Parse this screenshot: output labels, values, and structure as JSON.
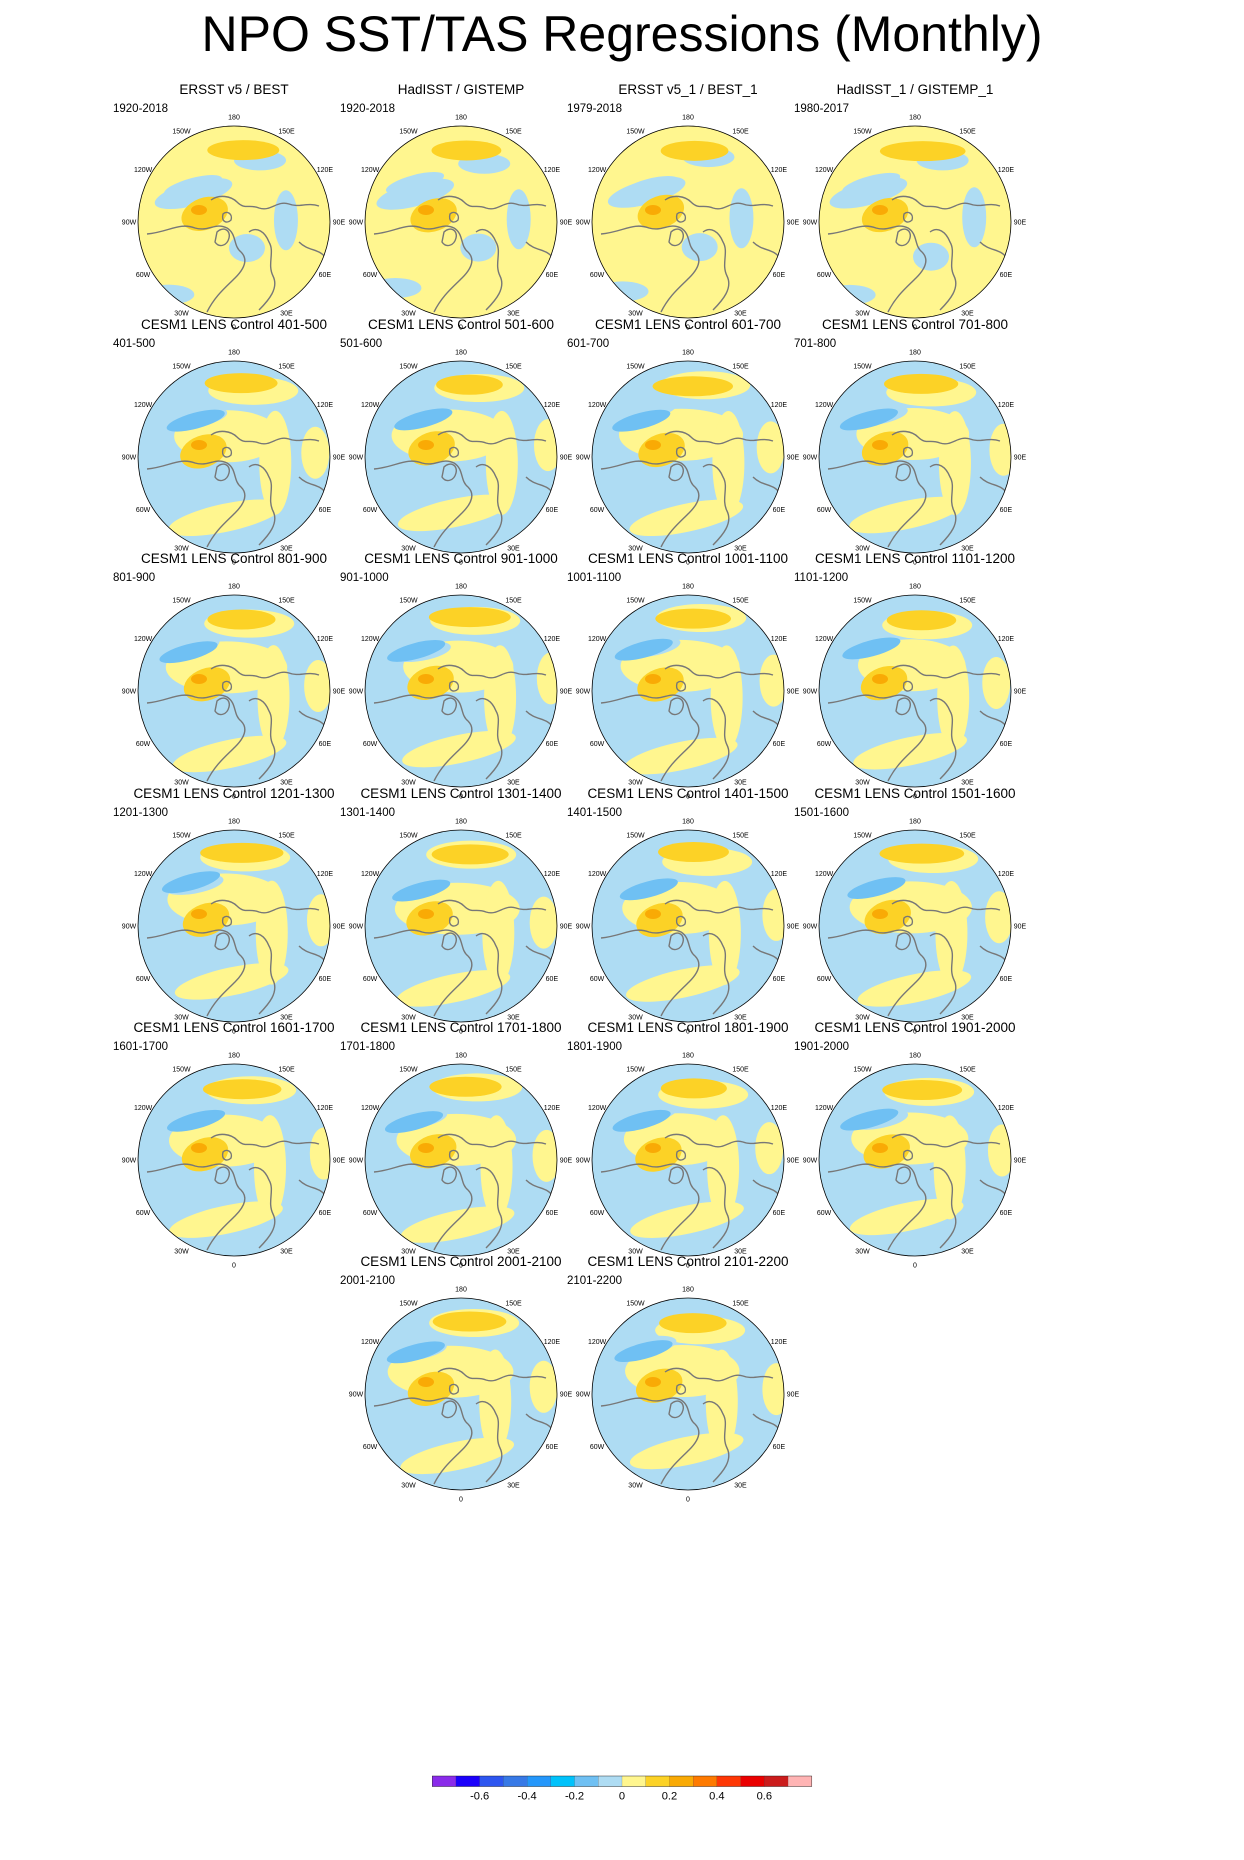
{
  "title": "NPO SST/TAS Regressions (Monthly)",
  "panels": [
    {
      "title": "ERSST v5 / BEST",
      "period": "1920-2018"
    },
    {
      "title": "HadISST / GISTEMP",
      "period": "1920-2018"
    },
    {
      "title": "ERSST v5_1 / BEST_1",
      "period": "1979-2018"
    },
    {
      "title": "HadISST_1 / GISTEMP_1",
      "period": "1980-2017"
    },
    {
      "title": "CESM1 LENS Control 401-500",
      "period": "401-500"
    },
    {
      "title": "CESM1 LENS Control 501-600",
      "period": "501-600"
    },
    {
      "title": "CESM1 LENS Control 601-700",
      "period": "601-700"
    },
    {
      "title": "CESM1 LENS Control 701-800",
      "period": "701-800"
    },
    {
      "title": "CESM1 LENS Control 801-900",
      "period": "801-900"
    },
    {
      "title": "CESM1 LENS Control 901-1000",
      "period": "901-1000"
    },
    {
      "title": "CESM1 LENS Control 1001-1100",
      "period": "1001-1100"
    },
    {
      "title": "CESM1 LENS Control 1101-1200",
      "period": "1101-1200"
    },
    {
      "title": "CESM1 LENS Control 1201-1300",
      "period": "1201-1300"
    },
    {
      "title": "CESM1 LENS Control 1301-1400",
      "period": "1301-1400"
    },
    {
      "title": "CESM1 LENS Control 1401-1500",
      "period": "1401-1500"
    },
    {
      "title": "CESM1 LENS Control 1501-1600",
      "period": "1501-1600"
    },
    {
      "title": "CESM1 LENS Control 1601-1700",
      "period": "1601-1700"
    },
    {
      "title": "CESM1 LENS Control 1701-1800",
      "period": "1701-1800"
    },
    {
      "title": "CESM1 LENS Control 1801-1900",
      "period": "1801-1900"
    },
    {
      "title": "CESM1 LENS Control 1901-2000",
      "period": "1901-2000"
    },
    {
      "title": "CESM1 LENS Control 2001-2100",
      "period": "2001-2100"
    },
    {
      "title": "CESM1 LENS Control 2101-2200",
      "period": "2101-2200"
    }
  ],
  "map": {
    "projection": "north polar stereographic",
    "lon_labels": [
      "180",
      "150E",
      "120E",
      "90E",
      "60E",
      "30E",
      "0",
      "30W",
      "60W",
      "90W",
      "120W",
      "150W"
    ],
    "colors": {
      "warm_weak": "#fff68f",
      "warm_mid": "#fcd226",
      "warm_strong": "#f9aa05",
      "cool_weak": "#aedcf3",
      "cool_mid": "#6fc0f3",
      "coast": "#777777"
    }
  },
  "colorbar": {
    "colors": [
      "#8a2bea",
      "#1b00fb",
      "#2d56f0",
      "#3779e6",
      "#2497fb",
      "#00c2fb",
      "#6fc0f3",
      "#aedcf3",
      "#fff68f",
      "#fcd226",
      "#f9aa05",
      "#fe7a00",
      "#fe3705",
      "#ea0000",
      "#cb1c1c",
      "#ffb4b4"
    ],
    "labels": [
      "-0.6",
      "-0.4",
      "-0.2",
      "0",
      "0.2",
      "0.4",
      "0.6"
    ]
  }
}
